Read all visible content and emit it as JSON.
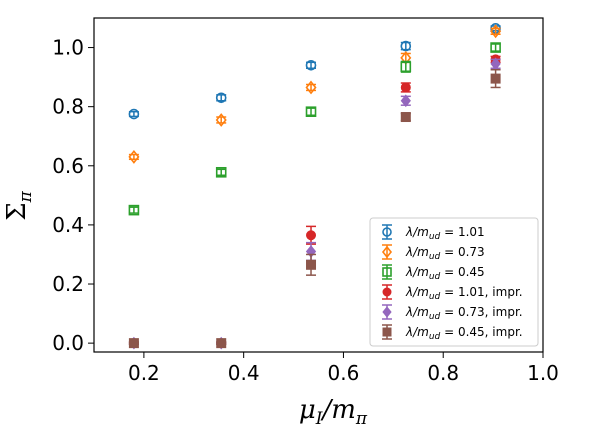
{
  "chart_data": {
    "type": "scatter",
    "title": "",
    "xlabel": "μ_I/m_π",
    "ylabel": "Σ_π",
    "xlim": [
      0.1,
      1.0
    ],
    "ylim": [
      -0.03,
      1.1
    ],
    "xticks": [
      "0.2",
      "0.4",
      "0.6",
      "0.8",
      "1.0"
    ],
    "yticks": [
      "0.0",
      "0.2",
      "0.4",
      "0.6",
      "0.8",
      "1.0"
    ],
    "grid": false,
    "legend_position": "lower-right",
    "series": [
      {
        "name": "λ/m_ud = 1.01",
        "color": "#1f77b4",
        "marker": "circle-open",
        "x": [
          0.18,
          0.355,
          0.535,
          0.725,
          0.905
        ],
        "y": [
          0.775,
          0.83,
          0.94,
          1.005,
          1.065
        ],
        "err": [
          0.008,
          0.01,
          0.01,
          0.012,
          0.008
        ]
      },
      {
        "name": "λ/m_ud = 0.73",
        "color": "#ff7f0e",
        "marker": "diamond-open",
        "x": [
          0.18,
          0.355,
          0.535,
          0.725,
          0.905
        ],
        "y": [
          0.63,
          0.755,
          0.865,
          0.965,
          1.055
        ],
        "err": [
          0.008,
          0.01,
          0.01,
          0.015,
          0.01
        ]
      },
      {
        "name": "λ/m_ud = 0.45",
        "color": "#2ca02c",
        "marker": "square-open",
        "x": [
          0.18,
          0.355,
          0.535,
          0.725,
          0.905
        ],
        "y": [
          0.45,
          0.578,
          0.783,
          0.935,
          1.0
        ],
        "err": [
          0.01,
          0.01,
          0.012,
          0.018,
          0.012
        ]
      },
      {
        "name": "λ/m_ud = 1.01, impr.",
        "color": "#d62728",
        "marker": "circle",
        "x": [
          0.18,
          0.355,
          0.535,
          0.725,
          0.905
        ],
        "y": [
          0.0,
          0.0,
          0.365,
          0.865,
          0.96
        ],
        "err": [
          0.003,
          0.003,
          0.03,
          0.015,
          0.01
        ]
      },
      {
        "name": "λ/m_ud = 0.73, impr.",
        "color": "#9467bd",
        "marker": "diamond",
        "x": [
          0.18,
          0.355,
          0.535,
          0.725,
          0.905
        ],
        "y": [
          0.0,
          0.0,
          0.31,
          0.82,
          0.945
        ],
        "err": [
          0.003,
          0.003,
          0.03,
          0.015,
          0.015
        ]
      },
      {
        "name": "λ/m_ud = 0.45, impr.",
        "color": "#8c564b",
        "marker": "square",
        "x": [
          0.18,
          0.355,
          0.535,
          0.725,
          0.905
        ],
        "y": [
          0.0,
          0.0,
          0.265,
          0.765,
          0.895
        ],
        "err": [
          0.004,
          0.004,
          0.035,
          0.012,
          0.03
        ]
      }
    ]
  }
}
